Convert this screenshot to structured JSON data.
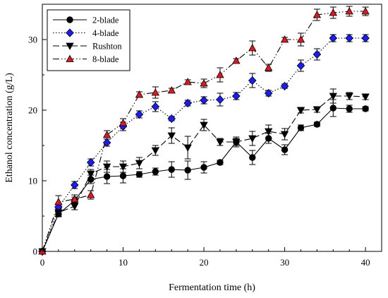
{
  "chart_data": {
    "type": "line",
    "xlabel": "Fermentation time (h)",
    "ylabel": "Ethanol concentration (g/L)",
    "xlim": [
      0,
      42
    ],
    "ylim": [
      0,
      35
    ],
    "xticks": [
      0,
      10,
      20,
      30,
      40
    ],
    "yticks": [
      0,
      10,
      20,
      30
    ],
    "grid": false,
    "legend_position": "top-left",
    "x": [
      0,
      2,
      4,
      6,
      8,
      10,
      12,
      14,
      16,
      18,
      20,
      22,
      24,
      26,
      28,
      30,
      32,
      34,
      36,
      38,
      40
    ],
    "series": [
      {
        "name": "2-blade",
        "marker": "circle",
        "marker_color": "#000000",
        "line_style": "solid",
        "values": [
          0,
          5.3,
          7.2,
          10.2,
          10.6,
          10.7,
          10.9,
          11.3,
          11.6,
          11.5,
          11.9,
          12.6,
          15.5,
          13.3,
          16.0,
          14.4,
          17.5,
          18.0,
          20.3,
          20.2,
          20.2
        ],
        "errors": [
          0,
          0.4,
          0.5,
          0.6,
          1.0,
          1.0,
          0.4,
          0.5,
          1.1,
          1.3,
          0.8,
          0.3,
          0.5,
          1.0,
          0.7,
          0.7,
          0.4,
          0.3,
          1.2,
          0.5,
          0.3
        ]
      },
      {
        "name": "4-blade",
        "marker": "diamond",
        "marker_color": "#1a1aff",
        "line_style": "dotted",
        "values": [
          0,
          6.3,
          9.4,
          12.6,
          15.4,
          17.7,
          19.4,
          20.5,
          18.8,
          21.0,
          21.4,
          21.5,
          22.0,
          24.2,
          22.4,
          23.4,
          26.3,
          27.9,
          30.2,
          30.2,
          30.2
        ],
        "errors": [
          0,
          0.5,
          0.5,
          0.5,
          0.5,
          0.6,
          0.5,
          0.7,
          0.3,
          0.4,
          0.5,
          0.9,
          0.5,
          1.0,
          0.4,
          0.3,
          0.8,
          0.8,
          0.5,
          0.5,
          0.5
        ]
      },
      {
        "name": "Rushton",
        "marker": "triangle-down",
        "marker_color": "#000000",
        "line_style": "dashed",
        "values": [
          0,
          5.5,
          6.4,
          11.0,
          12.0,
          12.0,
          12.5,
          14.3,
          16.4,
          14.7,
          17.9,
          15.5,
          15.5,
          16.0,
          17.0,
          16.6,
          20.0,
          20.1,
          22.0,
          22.0,
          21.9
        ],
        "errors": [
          0,
          0.5,
          0.5,
          0.6,
          0.8,
          0.8,
          0.8,
          0.7,
          1.1,
          1.6,
          0.8,
          0.5,
          0.7,
          1.0,
          0.9,
          0.8,
          0.4,
          0.4,
          1.0,
          0.5,
          0.4
        ]
      },
      {
        "name": "8-blade",
        "marker": "triangle-up",
        "marker_color": "#e8141e",
        "line_style": "dash-dot-dot",
        "values": [
          0,
          7.0,
          7.4,
          8.0,
          16.5,
          18.2,
          22.2,
          22.5,
          22.8,
          24.0,
          23.8,
          25.0,
          27.0,
          28.8,
          26.0,
          30.0,
          30.0,
          33.5,
          33.8,
          34.0,
          34.0
        ],
        "errors": [
          0,
          0.9,
          0.6,
          0.6,
          0.6,
          0.6,
          0.4,
          0.8,
          0.3,
          0.3,
          0.6,
          1.0,
          0.3,
          1.0,
          0.5,
          0.3,
          0.9,
          0.8,
          0.8,
          0.7,
          0.6
        ]
      }
    ]
  }
}
